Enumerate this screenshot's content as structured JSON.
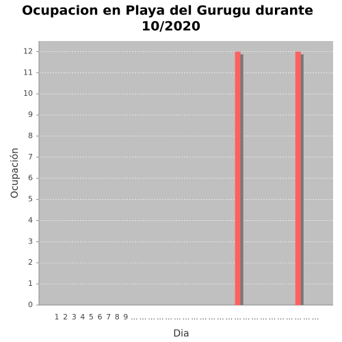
{
  "chart_data": {
    "type": "bar",
    "title": [
      "Ocupacion en  Playa del Gurugu durante",
      "10/2020"
    ],
    "x_label": "Dia",
    "y_label": "Ocupación",
    "categories": [
      "1",
      "2",
      "3",
      "4",
      "5",
      "6",
      "7",
      "8",
      "9",
      "...",
      "...",
      "...",
      "...",
      "...",
      "...",
      "...",
      "...",
      "...",
      "...",
      "...",
      "...",
      "...",
      "...",
      "...",
      "...",
      "...",
      "...",
      "...",
      "...",
      "...",
      "..."
    ],
    "values": [
      0,
      0,
      0,
      0,
      0,
      0,
      0,
      0,
      0,
      0,
      0,
      0,
      0,
      0,
      0,
      0,
      0,
      0,
      0,
      0,
      0,
      12,
      0,
      0,
      0,
      0,
      0,
      0,
      12,
      0,
      0
    ],
    "color": "#ff6060",
    "shadow_color": "#777777",
    "ylim": [
      0,
      12.5
    ],
    "yticks": [
      0,
      1,
      2,
      3,
      4,
      5,
      6,
      7,
      8,
      9,
      10,
      11,
      12
    ],
    "grid": true
  }
}
